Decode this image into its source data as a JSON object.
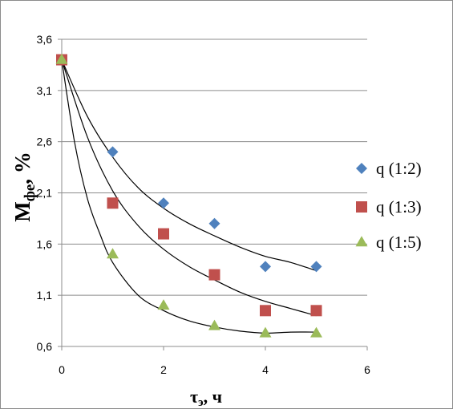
{
  "chart_data": {
    "type": "scatter",
    "xlabel": "τ, ч",
    "xlabel_main": "τ",
    "xlabel_sub": "э",
    "xlabel_rest": ", ч",
    "ylabel": "Mфе, %",
    "ylabel_main": "M",
    "ylabel_sub": "фе",
    "ylabel_rest": ", %",
    "xlim": [
      0,
      6
    ],
    "ylim": [
      0.6,
      3.6
    ],
    "xticks": [
      0,
      2,
      4,
      6
    ],
    "xtick_labels": [
      "0",
      "2",
      "4",
      "6"
    ],
    "yticks": [
      0.6,
      1.1,
      1.6,
      2.1,
      2.6,
      3.1,
      3.6
    ],
    "ytick_labels": [
      "0,6",
      "1,1",
      "1,6",
      "2,1",
      "2,6",
      "3,1",
      "3,6"
    ],
    "grid": "horizontal",
    "legend_position": "right",
    "series": [
      {
        "name": "q (1:2)",
        "marker": "diamond",
        "color": "#4f81bd",
        "x": [
          0,
          1,
          2,
          3,
          4,
          5
        ],
        "y": [
          3.4,
          2.5,
          2.0,
          1.8,
          1.38,
          1.38
        ],
        "trendline": [
          [
            0,
            3.4
          ],
          [
            0.5,
            2.85
          ],
          [
            1,
            2.45
          ],
          [
            1.5,
            2.15
          ],
          [
            2,
            1.95
          ],
          [
            2.5,
            1.8
          ],
          [
            3,
            1.68
          ],
          [
            3.5,
            1.57
          ],
          [
            4,
            1.48
          ],
          [
            4.5,
            1.42
          ],
          [
            5,
            1.34
          ]
        ]
      },
      {
        "name": "q (1:3)",
        "marker": "square",
        "color": "#c0504d",
        "x": [
          0,
          1,
          2,
          3,
          4,
          5
        ],
        "y": [
          3.4,
          2.0,
          1.7,
          1.3,
          0.95,
          0.95
        ],
        "trendline": [
          [
            0,
            3.4
          ],
          [
            0.5,
            2.65
          ],
          [
            1,
            2.12
          ],
          [
            1.5,
            1.78
          ],
          [
            2,
            1.55
          ],
          [
            2.5,
            1.38
          ],
          [
            3,
            1.25
          ],
          [
            3.5,
            1.13
          ],
          [
            4,
            1.04
          ],
          [
            4.5,
            0.97
          ],
          [
            5,
            0.9
          ]
        ]
      },
      {
        "name": "q (1:5)",
        "marker": "triangle",
        "color": "#9bbb59",
        "x": [
          0,
          1,
          2,
          3,
          4,
          5
        ],
        "y": [
          3.4,
          1.5,
          1.0,
          0.8,
          0.73,
          0.73
        ],
        "trendline": [
          [
            0,
            3.4
          ],
          [
            0.25,
            2.6
          ],
          [
            0.5,
            2.05
          ],
          [
            0.75,
            1.7
          ],
          [
            1,
            1.42
          ],
          [
            1.5,
            1.1
          ],
          [
            2,
            0.95
          ],
          [
            2.5,
            0.85
          ],
          [
            3,
            0.79
          ],
          [
            3.5,
            0.75
          ],
          [
            4,
            0.73
          ],
          [
            4.5,
            0.74
          ],
          [
            5,
            0.74
          ]
        ]
      }
    ]
  }
}
